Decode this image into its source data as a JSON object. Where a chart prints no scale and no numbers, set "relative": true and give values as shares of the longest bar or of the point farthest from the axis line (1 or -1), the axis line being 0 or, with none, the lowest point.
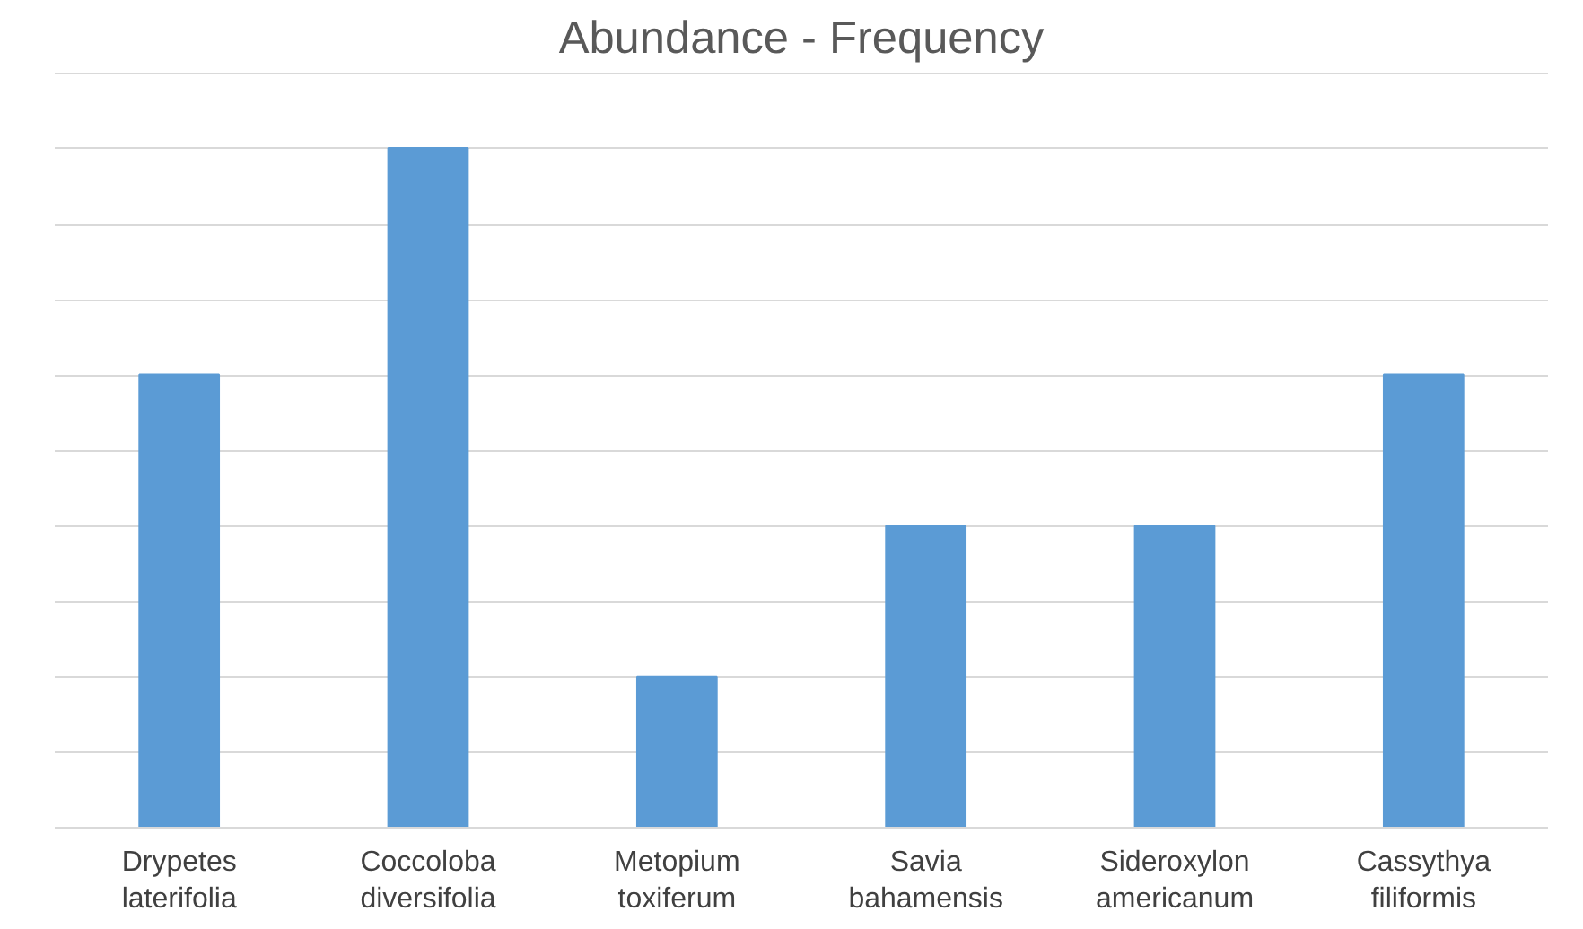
{
  "chart_data": {
    "type": "bar",
    "title": "Abundance - Frequency",
    "relative": true,
    "categories": [
      "Drypetes\nlaterifolia",
      "Coccoloba\ndiversifolia",
      "Metopium\ntoxiferum",
      "Savia\nbahamensis",
      "Sideroxylon\namericanum",
      "Cassythya\nfiliformis"
    ],
    "values": [
      0.667,
      1,
      0.222,
      0.444,
      0.444,
      0.667
    ],
    "color": "#5b9bd5",
    "grid": "y"
  }
}
